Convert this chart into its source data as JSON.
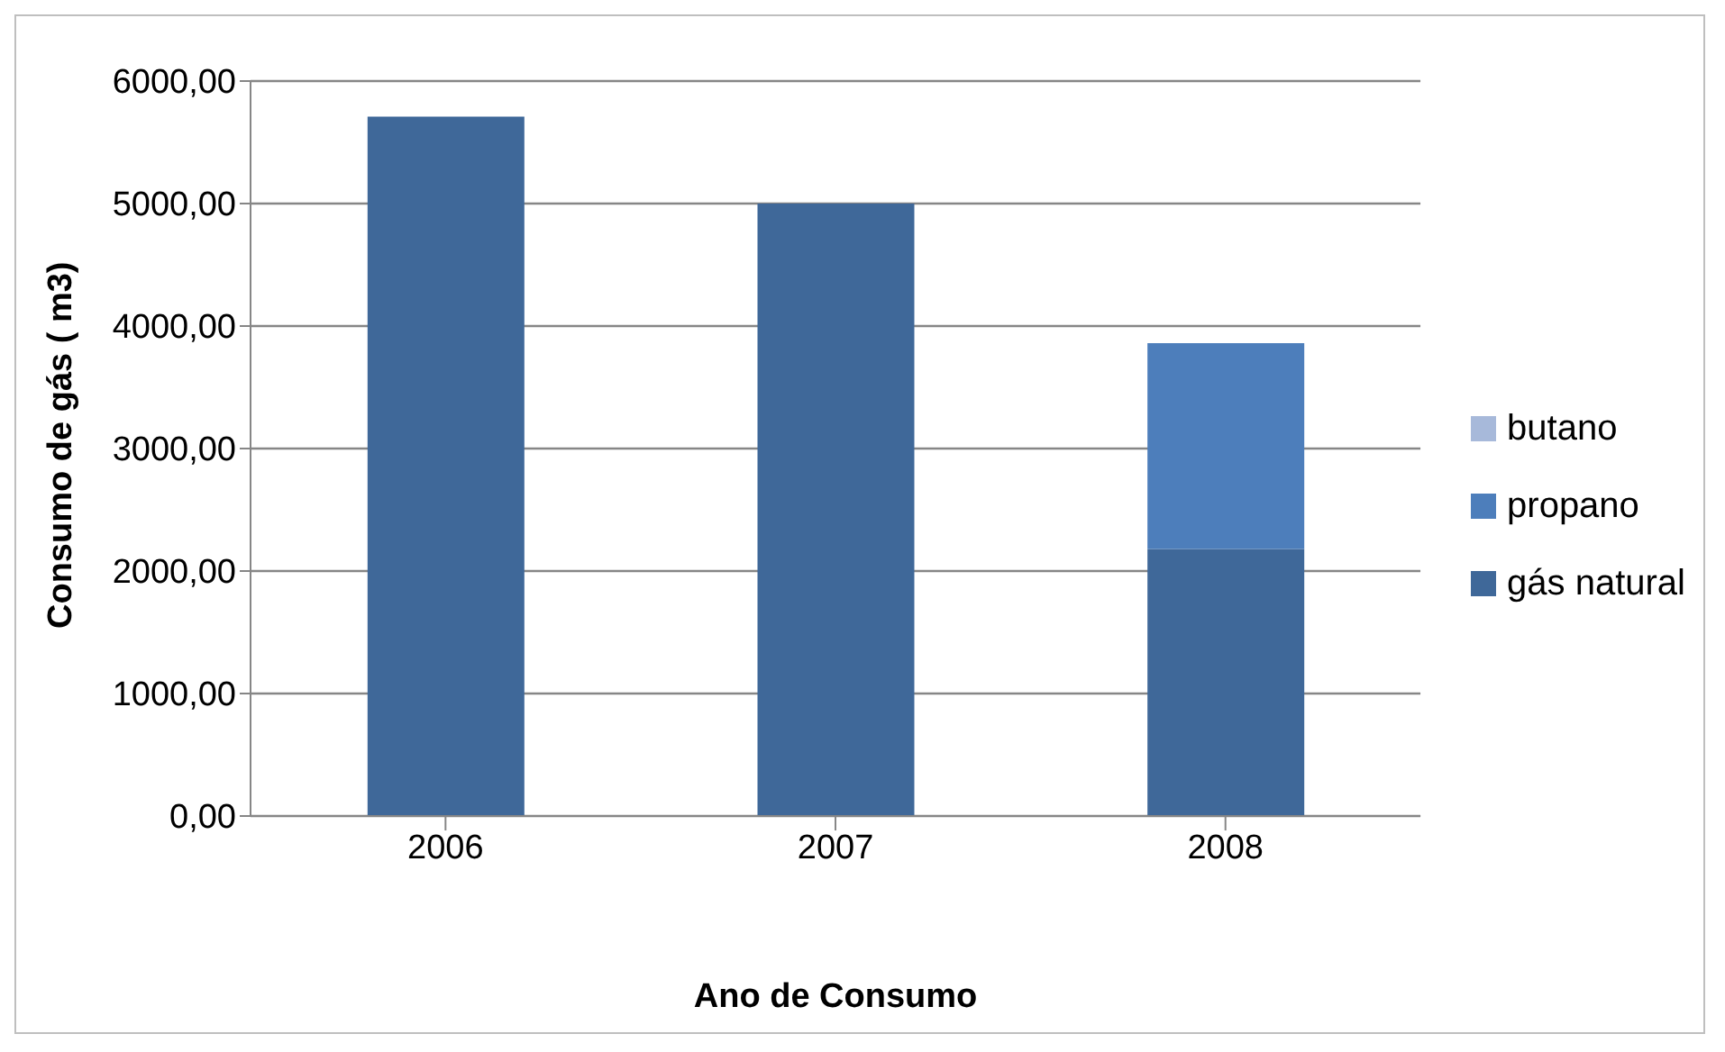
{
  "chart_data": {
    "type": "bar",
    "xlabel": "Ano de Consumo",
    "ylabel": "Consumo de gás ( m3)",
    "categories": [
      "2006",
      "2007",
      "2008"
    ],
    "stacked": true,
    "series": [
      {
        "name": "gás natural",
        "color": "#3f6899",
        "values": [
          5710,
          5000,
          2180
        ]
      },
      {
        "name": "propano",
        "color": "#4d7ebb",
        "values": [
          null,
          null,
          1680
        ]
      },
      {
        "name": "butano",
        "color": "#a7b9da",
        "values": [
          null,
          null,
          null
        ]
      }
    ],
    "ylim": [
      0,
      6000
    ],
    "yticks": [
      {
        "value": 0,
        "label": "0,00"
      },
      {
        "value": 1000,
        "label": "1000,00"
      },
      {
        "value": 2000,
        "label": "2000,00"
      },
      {
        "value": 3000,
        "label": "3000,00"
      },
      {
        "value": 4000,
        "label": "4000,00"
      },
      {
        "value": 5000,
        "label": "5000,00"
      },
      {
        "value": 6000,
        "label": "6000,00"
      }
    ],
    "grid": "y",
    "legend": "right"
  }
}
